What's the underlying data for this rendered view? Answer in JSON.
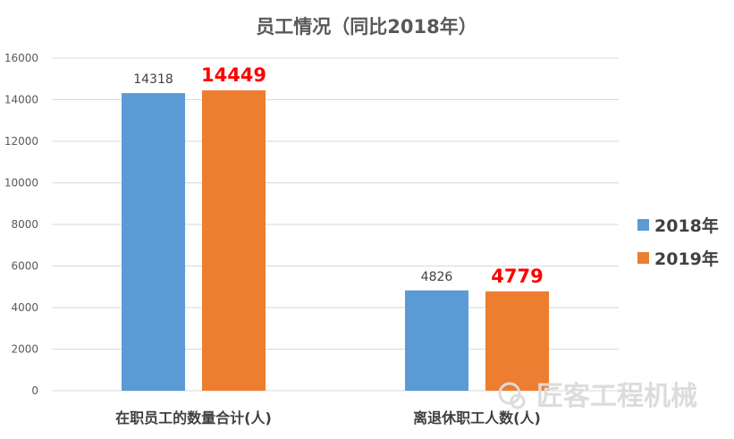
{
  "chart_data": {
    "type": "bar",
    "title": "员工情况（同比2018年）",
    "categories": [
      "在职员工的数量合计(人)",
      "离退休职工人数(人)"
    ],
    "series": [
      {
        "name": "2018年",
        "values": [
          14318,
          4826
        ],
        "color": "#5b9bd5"
      },
      {
        "name": "2019年",
        "values": [
          14449,
          4779
        ],
        "color": "#ed7d31"
      }
    ],
    "ylim": [
      0,
      16000
    ],
    "yticks": [
      0,
      2000,
      4000,
      6000,
      8000,
      10000,
      12000,
      14000,
      16000
    ],
    "grid": true,
    "legend": "right"
  },
  "watermark": "匠客工程机械"
}
